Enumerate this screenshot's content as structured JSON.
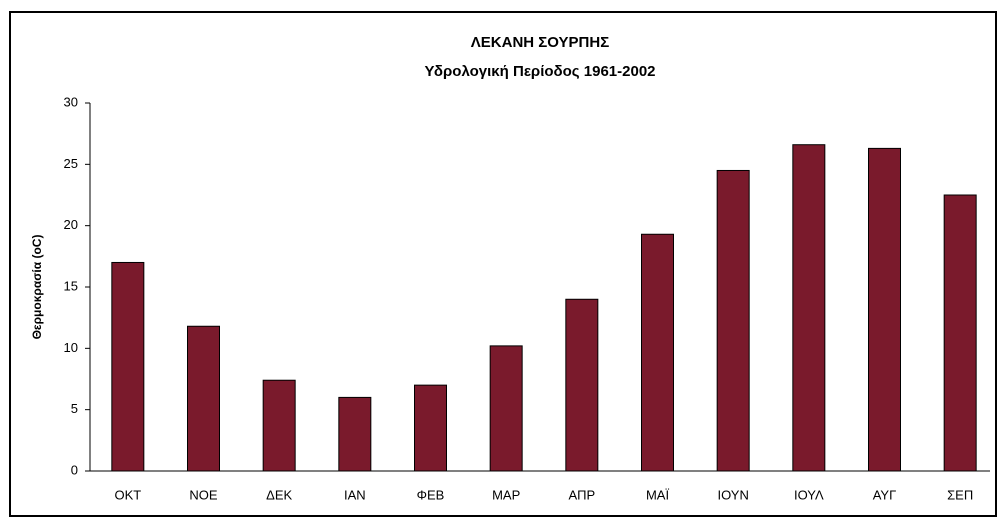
{
  "chart_data": {
    "type": "bar",
    "title": "ΛΕΚΑΝΗ ΣΟΥΡΠΗΣ",
    "subtitle": "Υδρολογική Περίοδος 1961-2002",
    "y_label": "Θερμοκρασία (oC)",
    "categories": [
      "ΟΚΤ",
      "ΝΟΕ",
      "ΔΕΚ",
      "ΙΑΝ",
      "ΦΕΒ",
      "ΜΑΡ",
      "ΑΠΡ",
      "ΜΑΪ",
      "ΙΟΥΝ",
      "ΙΟΥΛ",
      "ΑΥΓ",
      "ΣΕΠ"
    ],
    "values": [
      17,
      11.8,
      7.4,
      6,
      7,
      10.2,
      14,
      19.3,
      24.5,
      26.6,
      26.3,
      22.5
    ],
    "color": "#7a1a2c",
    "ylim": [
      0,
      30
    ],
    "yticks": [
      0,
      5,
      10,
      15,
      20,
      25,
      30
    ],
    "grid": false
  }
}
